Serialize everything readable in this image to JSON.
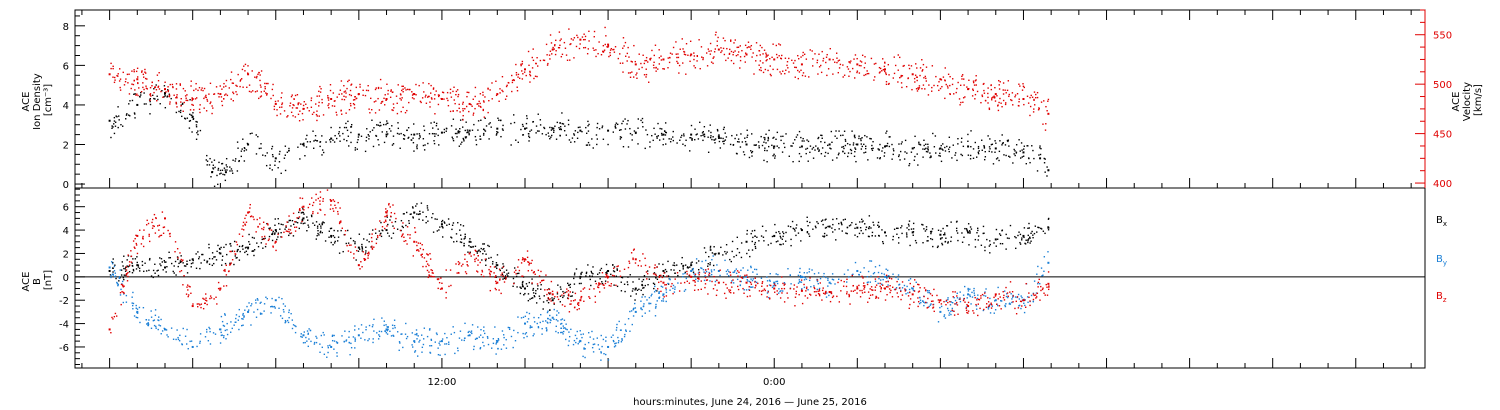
{
  "xlabel": "hours:minutes, June 24, 2016 — June 25, 2016",
  "x_ticks": [
    {
      "label": "12:00",
      "hour": 12
    },
    {
      "label": "0:00",
      "hour": 24
    }
  ],
  "colors": {
    "black": "#000000",
    "red": "#e00000",
    "blue": "#1a7fd6"
  },
  "chart_data": [
    {
      "type": "scatter",
      "panel": "top",
      "x_unit": "hours from 0:00 June 24, 2016",
      "xlim": [
        -1.25,
        47.5
      ],
      "left_axis": {
        "label_lines": [
          "ACE",
          "Ion Density",
          "[cm⁻³]"
        ],
        "ylim": [
          -0.2,
          8.8
        ],
        "ticks": [
          0,
          2,
          4,
          6,
          8
        ],
        "color": "#000000"
      },
      "right_axis": {
        "label_lines": [
          "ACE",
          "Velocity",
          "[km/s]"
        ],
        "ylim": [
          395,
          575
        ],
        "ticks": [
          400,
          450,
          500,
          550
        ],
        "color": "#e00000"
      },
      "series": [
        {
          "axis": "left",
          "color": "#000000",
          "points": [
            [
              0,
              3.2
            ],
            [
              1,
              4.0
            ],
            [
              2,
              4.6
            ],
            [
              3,
              3.4
            ],
            [
              3.7,
              0.6
            ],
            [
              4.2,
              0.6
            ],
            [
              5,
              2.0
            ],
            [
              6,
              1.3
            ],
            [
              7,
              2.0
            ],
            [
              8,
              2.3
            ],
            [
              9,
              2.5
            ],
            [
              10,
              2.5
            ],
            [
              11,
              2.5
            ],
            [
              12,
              2.6
            ],
            [
              13,
              2.7
            ],
            [
              14,
              2.8
            ],
            [
              15,
              2.8
            ],
            [
              16,
              2.8
            ],
            [
              17,
              2.7
            ],
            [
              18,
              2.7
            ],
            [
              19,
              2.6
            ],
            [
              20,
              2.5
            ],
            [
              21,
              2.5
            ],
            [
              22,
              2.4
            ],
            [
              23,
              2.0
            ],
            [
              24,
              1.9
            ],
            [
              25,
              1.9
            ],
            [
              26,
              2.0
            ],
            [
              27,
              2.0
            ],
            [
              28,
              1.9
            ],
            [
              29,
              1.8
            ],
            [
              30,
              1.8
            ],
            [
              31,
              1.9
            ],
            [
              32,
              1.8
            ],
            [
              33,
              1.6
            ],
            [
              33.6,
              1.3
            ],
            [
              33.9,
              0.7
            ]
          ]
        },
        {
          "axis": "right",
          "color": "#e00000",
          "points": [
            [
              0,
              510
            ],
            [
              1,
              505
            ],
            [
              2,
              495
            ],
            [
              3,
              485
            ],
            [
              4,
              490
            ],
            [
              5,
              510
            ],
            [
              6,
              480
            ],
            [
              7,
              475
            ],
            [
              8,
              485
            ],
            [
              9,
              490
            ],
            [
              10,
              485
            ],
            [
              11,
              490
            ],
            [
              12,
              485
            ],
            [
              13,
              480
            ],
            [
              14,
              490
            ],
            [
              15,
              515
            ],
            [
              16,
              535
            ],
            [
              17,
              545
            ],
            [
              18,
              540
            ],
            [
              19,
              520
            ],
            [
              20,
              525
            ],
            [
              21,
              530
            ],
            [
              22,
              535
            ],
            [
              23,
              530
            ],
            [
              24,
              525
            ],
            [
              25,
              520
            ],
            [
              26,
              525
            ],
            [
              27,
              520
            ],
            [
              28,
              515
            ],
            [
              29,
              510
            ],
            [
              30,
              505
            ],
            [
              31,
              495
            ],
            [
              32,
              490
            ],
            [
              33,
              485
            ],
            [
              33.9,
              470
            ]
          ]
        }
      ]
    },
    {
      "type": "scatter",
      "panel": "bottom",
      "x_unit": "hours from 0:00 June 24, 2016",
      "xlim": [
        -1.25,
        47.5
      ],
      "left_axis": {
        "label_lines": [
          "ACE",
          "B",
          "[nT]"
        ],
        "ylim": [
          -7.8,
          7.6
        ],
        "ticks": [
          -6,
          -4,
          -2,
          0,
          2,
          4,
          6
        ],
        "color": "#000000"
      },
      "zero_line": 0,
      "series": [
        {
          "name": "B",
          "subscript": "x",
          "color": "#000000",
          "points": [
            [
              0,
              0.5
            ],
            [
              1,
              1.0
            ],
            [
              2,
              0.8
            ],
            [
              3,
              1.5
            ],
            [
              4,
              2.0
            ],
            [
              5,
              2.5
            ],
            [
              6,
              4.0
            ],
            [
              7,
              5.0
            ],
            [
              8,
              3.5
            ],
            [
              9,
              2.5
            ],
            [
              10,
              4.0
            ],
            [
              11,
              5.5
            ],
            [
              12,
              4.5
            ],
            [
              13,
              3.0
            ],
            [
              14,
              1.0
            ],
            [
              15,
              -1.0
            ],
            [
              16,
              -2.0
            ],
            [
              17,
              0.0
            ],
            [
              18,
              0.5
            ],
            [
              19,
              -1.0
            ],
            [
              20,
              0.5
            ],
            [
              21,
              1.0
            ],
            [
              22,
              2.0
            ],
            [
              23,
              3.0
            ],
            [
              24,
              3.5
            ],
            [
              25,
              4.0
            ],
            [
              26,
              4.3
            ],
            [
              27,
              4.2
            ],
            [
              28,
              3.8
            ],
            [
              29,
              3.8
            ],
            [
              30,
              3.6
            ],
            [
              31,
              3.8
            ],
            [
              32,
              3.2
            ],
            [
              33,
              3.5
            ],
            [
              33.9,
              4.2
            ]
          ]
        },
        {
          "name": "B",
          "subscript": "y",
          "color": "#1a7fd6",
          "points": [
            [
              0,
              0.8
            ],
            [
              1,
              -3.0
            ],
            [
              2,
              -4.5
            ],
            [
              3,
              -6.0
            ],
            [
              4,
              -4.5
            ],
            [
              5,
              -3.0
            ],
            [
              6,
              -2.0
            ],
            [
              7,
              -5.0
            ],
            [
              8,
              -6.0
            ],
            [
              9,
              -5.0
            ],
            [
              10,
              -4.5
            ],
            [
              11,
              -5.5
            ],
            [
              12,
              -5.5
            ],
            [
              13,
              -5.0
            ],
            [
              14,
              -5.5
            ],
            [
              15,
              -4.0
            ],
            [
              16,
              -3.5
            ],
            [
              17,
              -5.5
            ],
            [
              18,
              -6.0
            ],
            [
              19,
              -3.0
            ],
            [
              20,
              -1.5
            ],
            [
              21,
              0.5
            ],
            [
              22,
              0.5
            ],
            [
              23,
              0.0
            ],
            [
              24,
              -0.5
            ],
            [
              25,
              0.0
            ],
            [
              26,
              -0.5
            ],
            [
              27,
              0.5
            ],
            [
              28,
              0.0
            ],
            [
              29,
              -1.0
            ],
            [
              30,
              -3.0
            ],
            [
              31,
              -1.5
            ],
            [
              32,
              -2.0
            ],
            [
              33,
              -2.0
            ],
            [
              33.9,
              1.2
            ]
          ]
        },
        {
          "name": "B",
          "subscript": "z",
          "color": "#e00000",
          "points": [
            [
              0,
              -4.5
            ],
            [
              1,
              3.5
            ],
            [
              2,
              5.0
            ],
            [
              3,
              -2.5
            ],
            [
              4,
              -1.0
            ],
            [
              5,
              5.5
            ],
            [
              6,
              3.0
            ],
            [
              7,
              6.0
            ],
            [
              8,
              6.5
            ],
            [
              9,
              1.0
            ],
            [
              10,
              5.5
            ],
            [
              11,
              3.0
            ],
            [
              12,
              -1.0
            ],
            [
              13,
              2.0
            ],
            [
              14,
              -0.5
            ],
            [
              15,
              1.5
            ],
            [
              16,
              -1.5
            ],
            [
              17,
              -2.0
            ],
            [
              18,
              0.0
            ],
            [
              19,
              1.5
            ],
            [
              20,
              -0.5
            ],
            [
              21,
              0.0
            ],
            [
              22,
              -0.5
            ],
            [
              23,
              -0.5
            ],
            [
              24,
              -1.0
            ],
            [
              25,
              -1.2
            ],
            [
              26,
              -1.3
            ],
            [
              27,
              -1.0
            ],
            [
              28,
              -1.0
            ],
            [
              29,
              -1.5
            ],
            [
              30,
              -2.0
            ],
            [
              31,
              -2.5
            ],
            [
              32,
              -1.5
            ],
            [
              33,
              -2.0
            ],
            [
              33.9,
              -0.6
            ]
          ]
        }
      ]
    }
  ]
}
